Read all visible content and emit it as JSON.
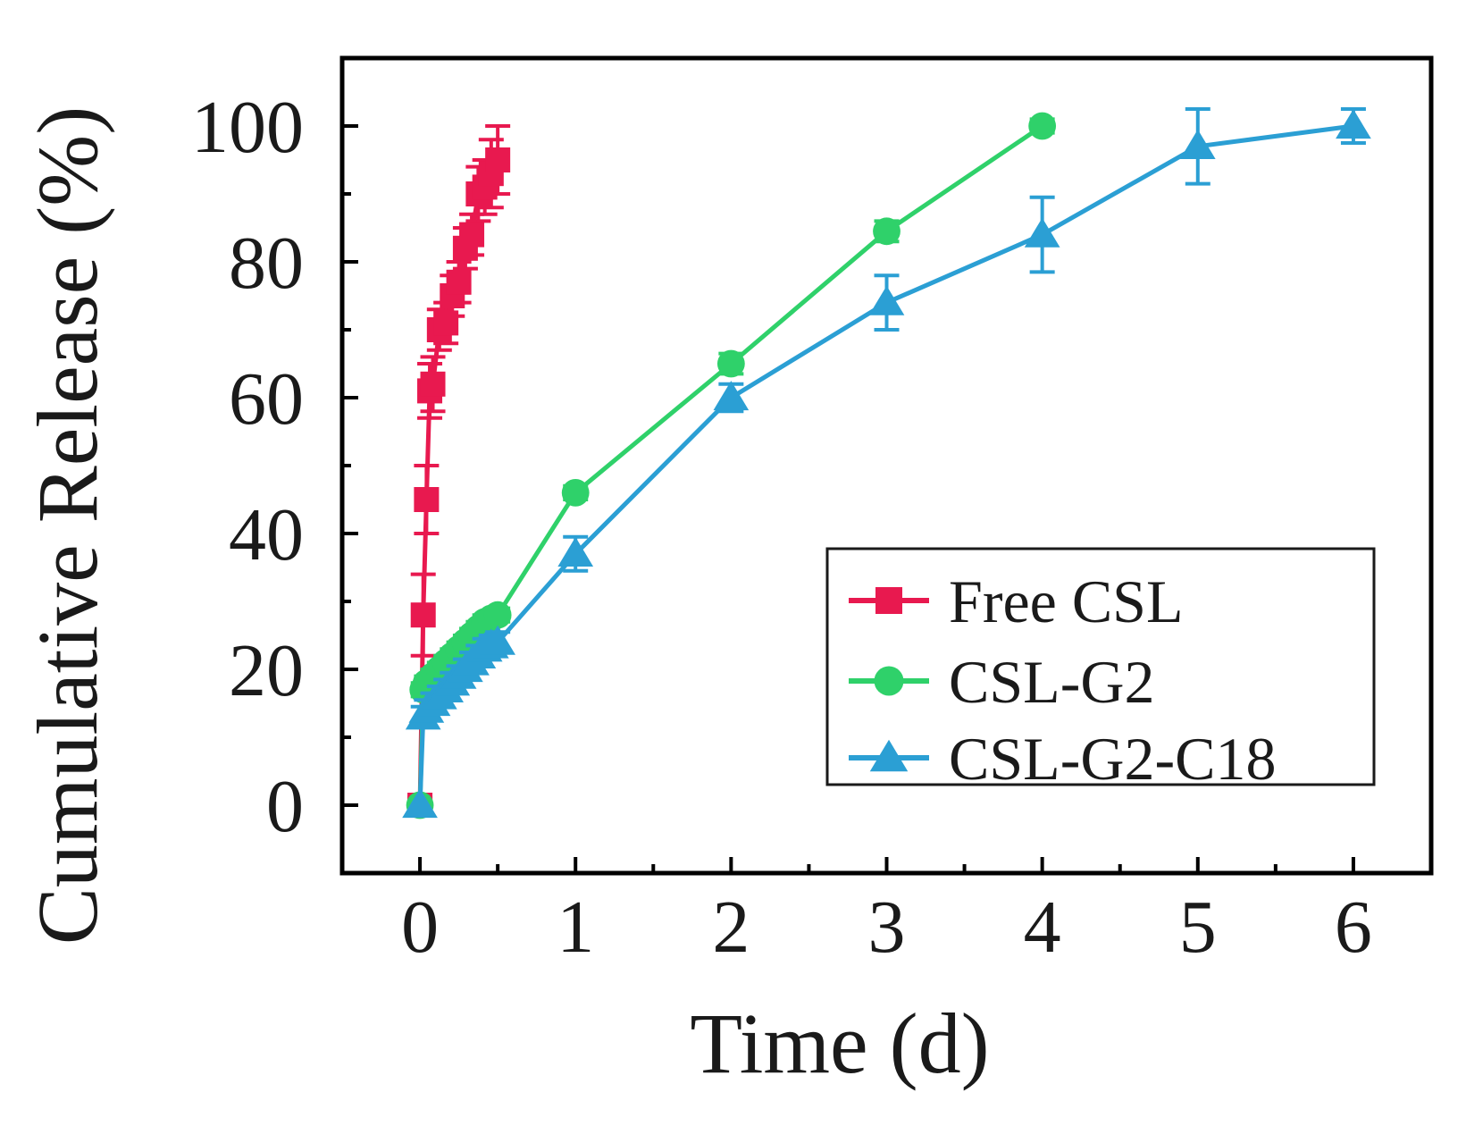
{
  "chart_data": {
    "type": "line",
    "title": "",
    "xlabel": "Time (d)",
    "ylabel": "Cumulative Release (%)",
    "xlim": [
      -0.5,
      6.5
    ],
    "ylim": [
      -10,
      110
    ],
    "xticks": [
      0,
      1,
      2,
      3,
      4,
      5,
      6
    ],
    "xtick_labels": [
      "0",
      "1",
      "2",
      "3",
      "4",
      "5",
      "6"
    ],
    "yticks": [
      0,
      20,
      40,
      60,
      80,
      100
    ],
    "ytick_labels": [
      "0",
      "20",
      "40",
      "60",
      "80",
      "100"
    ],
    "grid": false,
    "legend_position": "bottom-right",
    "series": [
      {
        "name": "Free CSL",
        "color": "#e8194f",
        "marker": "square",
        "x": [
          0,
          0.021,
          0.042,
          0.063,
          0.083,
          0.125,
          0.167,
          0.208,
          0.25,
          0.292,
          0.333,
          0.375,
          0.417,
          0.458,
          0.5
        ],
        "y": [
          0,
          28,
          45,
          61,
          62,
          70,
          71,
          75,
          77,
          82,
          84,
          90,
          91,
          93,
          95
        ],
        "err": [
          1,
          6,
          5,
          4,
          4,
          3,
          3,
          3,
          3,
          3,
          3,
          4,
          4,
          5,
          5
        ]
      },
      {
        "name": "CSL-G2",
        "color": "#2fd16a",
        "marker": "circle",
        "x": [
          0,
          0.021,
          0.042,
          0.083,
          0.125,
          0.167,
          0.208,
          0.25,
          0.292,
          0.333,
          0.375,
          0.417,
          0.458,
          0.5,
          1,
          2,
          3,
          4
        ],
        "y": [
          0,
          17,
          18,
          19,
          20,
          21,
          22,
          23,
          24,
          25,
          26,
          27,
          27.5,
          28,
          46,
          65,
          84.5,
          100
        ],
        "err": [
          0,
          1,
          1,
          1,
          1,
          1,
          1,
          1,
          1,
          1,
          1,
          1,
          1,
          1,
          1,
          1.5,
          1.5,
          1
        ]
      },
      {
        "name": "CSL-G2-C18",
        "color": "#2b9fd4",
        "marker": "triangle",
        "x": [
          0,
          0.021,
          0.042,
          0.083,
          0.125,
          0.167,
          0.208,
          0.25,
          0.292,
          0.333,
          0.375,
          0.417,
          0.458,
          0.5,
          1,
          2,
          3,
          4,
          5,
          6
        ],
        "y": [
          0,
          13,
          14,
          15,
          16,
          17,
          18,
          19,
          20,
          21,
          22,
          23,
          23.5,
          24,
          37,
          60,
          74,
          84,
          97,
          100
        ],
        "err": [
          0,
          1.5,
          1.5,
          1.5,
          1.5,
          1.5,
          1.5,
          1.5,
          1.5,
          1.5,
          1.5,
          1.5,
          1.5,
          1.5,
          2.5,
          2,
          4,
          5.5,
          5.5,
          2.5
        ]
      }
    ]
  }
}
